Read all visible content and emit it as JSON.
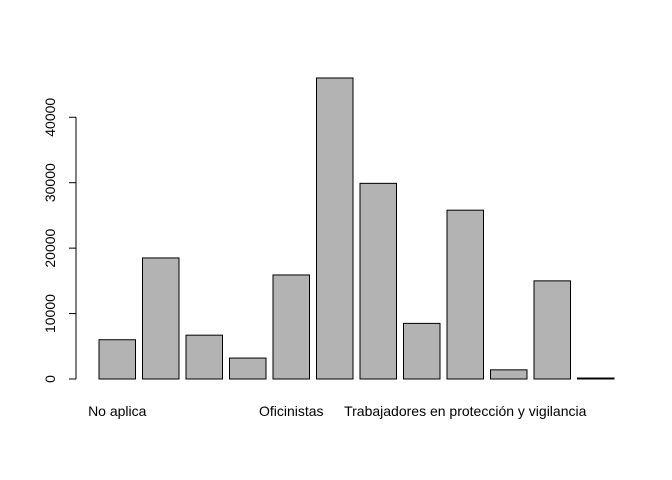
{
  "chart_data": {
    "type": "bar",
    "categories": [
      "No aplica",
      "",
      "",
      "",
      "Oficinistas",
      "",
      "",
      "",
      "Trabajadores en protección y vigilancia",
      "",
      "",
      ""
    ],
    "values": [
      6000,
      18500,
      6700,
      3200,
      15900,
      46000,
      29900,
      8500,
      25800,
      1400,
      15000,
      150
    ],
    "title": "",
    "xlabel": "",
    "ylabel": "",
    "ylim": [
      0,
      46000
    ],
    "yticks": [
      0,
      10000,
      20000,
      30000,
      40000
    ],
    "grid": false,
    "bar_color": "#b3b3b3"
  }
}
